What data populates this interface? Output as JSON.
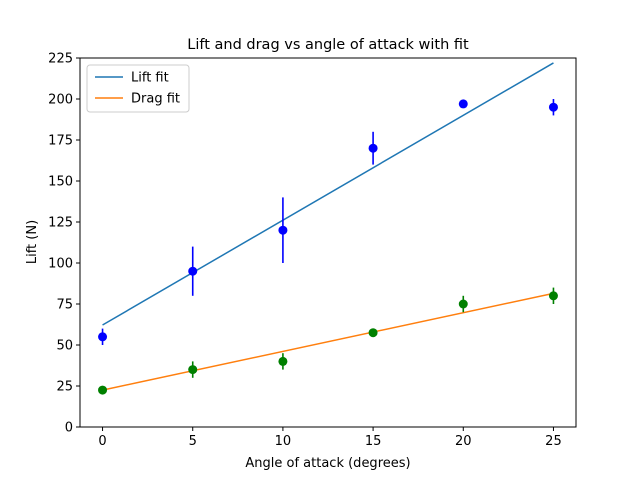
{
  "chart_data": {
    "type": "scatter",
    "title": "Lift and drag vs angle of attack with fit",
    "xlabel": "Angle of attack (degrees)",
    "ylabel": "Lift (N)",
    "xlim": [
      -1.25,
      26.25
    ],
    "ylim": [
      0,
      225
    ],
    "xticks": [
      0,
      5,
      10,
      15,
      20,
      25
    ],
    "yticks": [
      0,
      25,
      50,
      75,
      100,
      125,
      150,
      175,
      200,
      225
    ],
    "grid": false,
    "legend_position": "top-left",
    "measurements": [
      {
        "color": "#0000ff",
        "x": [
          0,
          5,
          10,
          15,
          20,
          25
        ],
        "y": [
          55,
          95,
          120,
          170,
          197,
          195
        ],
        "yerr": [
          5,
          15,
          20,
          10,
          2,
          5
        ]
      },
      {
        "color": "#008000",
        "x": [
          0,
          5,
          10,
          15,
          20,
          25
        ],
        "y": [
          22.5,
          35,
          40,
          57.5,
          75,
          80
        ],
        "yerr": [
          1.5,
          5,
          5,
          1.5,
          5,
          5
        ]
      }
    ],
    "series": [
      {
        "name": "Lift fit",
        "color": "#1f77b4",
        "x": [
          0,
          25
        ],
        "y": [
          62.2,
          222
        ]
      },
      {
        "name": "Drag fit",
        "color": "#ff7f0e",
        "x": [
          0,
          25
        ],
        "y": [
          22.5,
          81.5
        ]
      }
    ]
  }
}
